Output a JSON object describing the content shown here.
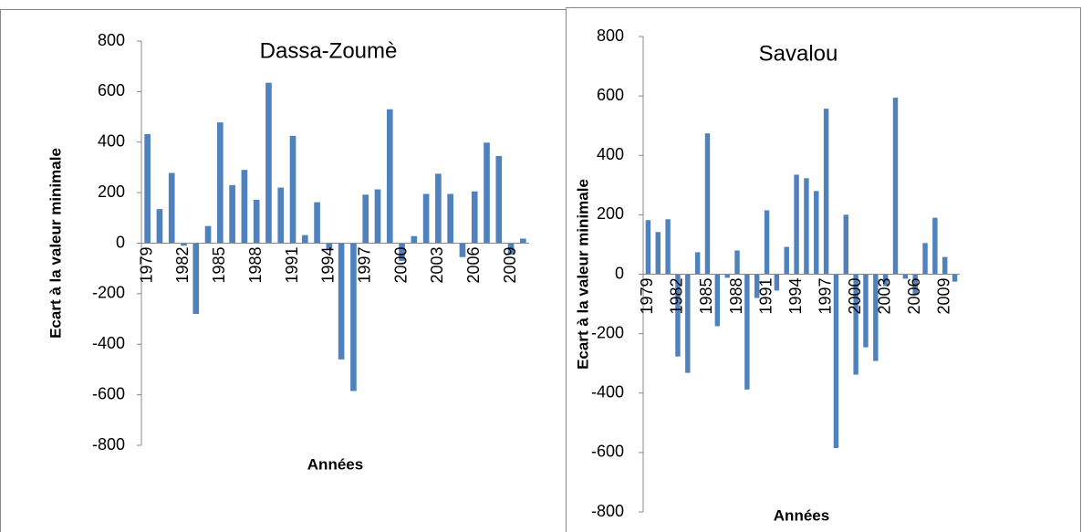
{
  "chart_data": [
    {
      "type": "bar",
      "title": "Dassa-Zoumè",
      "ylabel": "Ecart à la valeur minimale",
      "xlabel": "Années",
      "color": "#4f81bd",
      "categories": [
        "1979",
        null,
        null,
        "1982",
        null,
        null,
        "1985",
        null,
        null,
        "1988",
        null,
        null,
        "1991",
        null,
        null,
        "1994",
        null,
        null,
        "1997",
        null,
        null,
        "2000",
        null,
        null,
        "2003",
        null,
        null,
        "2006",
        null,
        null,
        "2009",
        null
      ],
      "values": [
        432,
        135,
        278,
        -10,
        -280,
        68,
        478,
        230,
        290,
        172,
        635,
        220,
        425,
        32,
        162,
        -25,
        -460,
        -585,
        192,
        213,
        530,
        -70,
        28,
        195,
        275,
        195,
        -55,
        205,
        398,
        345,
        -45,
        18
      ],
      "ylim": [
        -800,
        800
      ],
      "yticks": [
        -800,
        -600,
        -400,
        -200,
        0,
        200,
        400,
        600,
        800
      ]
    },
    {
      "type": "bar",
      "title": "Savalou",
      "ylabel": "Ecart à la valeur minimale",
      "xlabel": "Années",
      "color": "#4f81bd",
      "categories": [
        "1979",
        null,
        null,
        "1982",
        null,
        null,
        "1985",
        null,
        null,
        "1988",
        null,
        null,
        "1991",
        null,
        null,
        "1994",
        null,
        null,
        "1997",
        null,
        null,
        "2000",
        null,
        null,
        "2003",
        null,
        null,
        "2006",
        null,
        null,
        "2009",
        null
      ],
      "values": [
        182,
        142,
        185,
        -277,
        -332,
        74,
        474,
        -175,
        -12,
        80,
        -388,
        -80,
        215,
        -55,
        92,
        335,
        323,
        280,
        557,
        -585,
        200,
        -338,
        -246,
        -292,
        -40,
        594,
        -15,
        -68,
        105,
        190,
        58,
        -25
      ],
      "ylim": [
        -800,
        800
      ],
      "yticks": [
        -800,
        -600,
        -400,
        -200,
        0,
        200,
        400,
        600,
        800
      ]
    }
  ]
}
